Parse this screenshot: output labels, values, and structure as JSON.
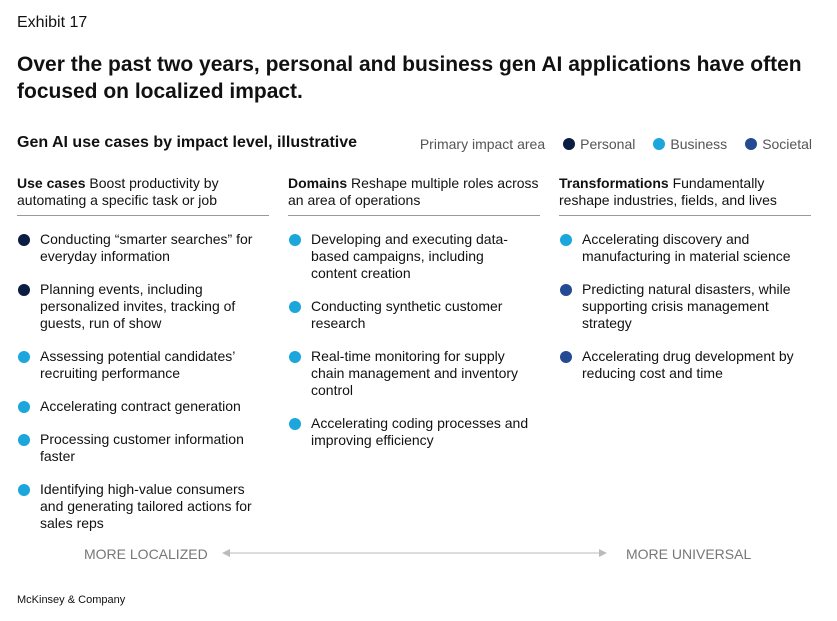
{
  "exhibit": "Exhibit 17",
  "title": "Over the past two years, personal and business gen AI applications have often focused on localized impact.",
  "subtitle": "Gen AI use cases by impact level, illustrative",
  "legend": {
    "label": "Primary impact area",
    "items": [
      {
        "name": "Personal",
        "color": "#0b1d42"
      },
      {
        "name": "Business",
        "color": "#1ba6dc"
      },
      {
        "name": "Societal",
        "color": "#234a92"
      }
    ]
  },
  "columns": [
    {
      "heading": "Use cases",
      "text": "Boost productivity by automating a specific task or job",
      "items": [
        {
          "text": "Conducting “smarter searches” for everyday information",
          "color": "#0b1d42"
        },
        {
          "text": "Planning events, including personalized invites, tracking of guests, run of show",
          "color": "#0b1d42"
        },
        {
          "text": "Assessing potential candidates’ recruiting performance",
          "color": "#1ba6dc"
        },
        {
          "text": "Accelerating contract generation",
          "color": "#1ba6dc"
        },
        {
          "text": "Processing customer information faster",
          "color": "#1ba6dc"
        },
        {
          "text": "Identifying high-value consumers and generating tailored actions for sales reps",
          "color": "#1ba6dc"
        }
      ]
    },
    {
      "heading": "Domains",
      "text": "Reshape multiple roles across an area of operations",
      "items": [
        {
          "text": "Developing and executing data-based campaigns, including content creation",
          "color": "#1ba6dc"
        },
        {
          "text": "Conducting synthetic customer research",
          "color": "#1ba6dc"
        },
        {
          "text": "Real-time monitoring for supply chain management and inventory control",
          "color": "#1ba6dc"
        },
        {
          "text": "Accelerating coding processes and improving efficiency",
          "color": "#1ba6dc"
        }
      ]
    },
    {
      "heading": "Transformations",
      "text": "Fundamentally reshape industries, fields, and lives",
      "items": [
        {
          "text": "Accelerating discovery and manufacturing in material science",
          "color": "#1ba6dc"
        },
        {
          "text": "Predicting natural disasters, while supporting crisis management strategy",
          "color": "#234a92"
        },
        {
          "text": "Accelerating drug development by reducing cost and time",
          "color": "#234a92"
        }
      ]
    }
  ],
  "axis": {
    "left": "MORE LOCALIZED",
    "right": "MORE UNIVERSAL"
  },
  "footer": "McKinsey & Company"
}
